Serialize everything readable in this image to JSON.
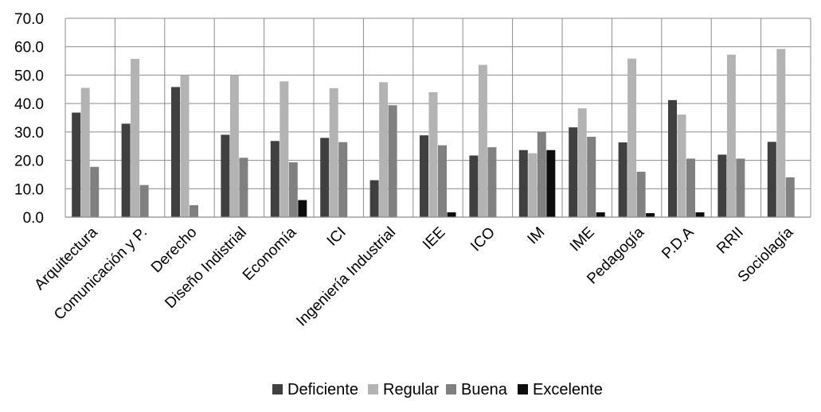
{
  "chart_data": {
    "type": "bar",
    "title": "",
    "xlabel": "",
    "ylabel": "",
    "ylim": [
      0,
      70
    ],
    "yticks": [
      "0.0",
      "10.0",
      "20.0",
      "30.0",
      "40.0",
      "50.0",
      "60.0",
      "70.0"
    ],
    "grid": "vertical category gridlines",
    "legend_position": "bottom",
    "categories": [
      "Arquitectura",
      "Comunicación y P.",
      "Derecho",
      "Diseño Indistrial",
      "Economía",
      "ICI",
      "Ingeniería Industrial",
      "IEE",
      "ICO",
      "IM",
      "IME",
      "Pedagogía",
      "P.D.A",
      "RRII",
      "Sociolagía"
    ],
    "series": [
      {
        "name": "Deficiente",
        "color": "#404040",
        "values": [
          36.8,
          32.9,
          45.8,
          29.0,
          26.8,
          27.9,
          13.0,
          28.8,
          21.7,
          23.6,
          31.6,
          26.3,
          41.2,
          22.0,
          26.5
        ]
      },
      {
        "name": "Regular",
        "color": "#b3b3b3",
        "values": [
          45.5,
          55.7,
          50.0,
          50.0,
          47.8,
          45.4,
          47.5,
          44.0,
          53.6,
          22.5,
          38.3,
          55.8,
          36.1,
          57.2,
          59.2
        ]
      },
      {
        "name": "Buena",
        "color": "#808080",
        "values": [
          17.7,
          11.3,
          4.2,
          20.9,
          19.3,
          26.4,
          39.4,
          25.3,
          24.6,
          30.0,
          28.3,
          16.0,
          20.6,
          20.6,
          14.0
        ]
      },
      {
        "name": "Excelente",
        "color": "#0d0d0d",
        "values": [
          0,
          0,
          0,
          0,
          6.0,
          0,
          0,
          1.7,
          0,
          23.6,
          1.7,
          1.4,
          1.7,
          0,
          0
        ]
      }
    ]
  }
}
